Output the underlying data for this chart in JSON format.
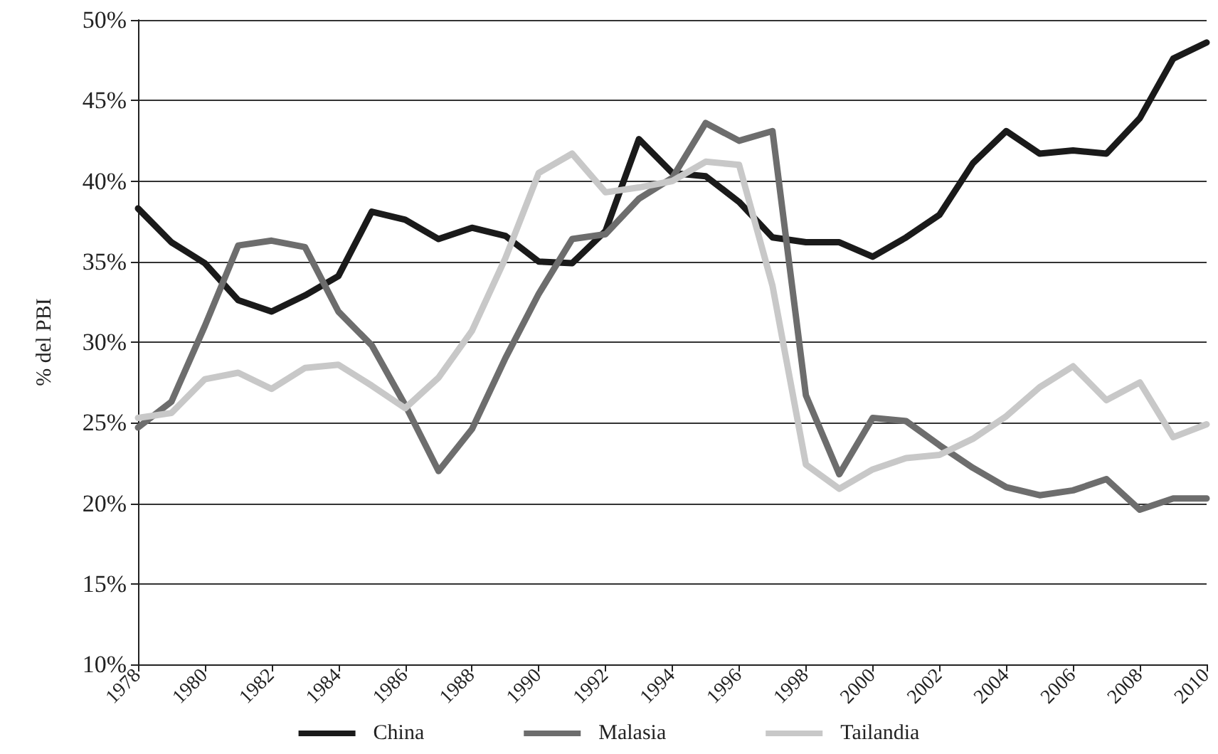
{
  "chart_data": {
    "type": "line",
    "ylabel": "% del PBI",
    "x": [
      1978,
      1979,
      1980,
      1981,
      1982,
      1983,
      1984,
      1985,
      1986,
      1987,
      1988,
      1989,
      1990,
      1991,
      1992,
      1993,
      1994,
      1995,
      1996,
      1997,
      1998,
      1999,
      2000,
      2001,
      2002,
      2003,
      2004,
      2005,
      2006,
      2007,
      2008,
      2009,
      2010
    ],
    "series": [
      {
        "name": "China",
        "color": "#1a1a1a",
        "values": [
          38.3,
          36.2,
          34.9,
          32.6,
          31.9,
          32.9,
          34.1,
          38.1,
          37.6,
          36.4,
          37.1,
          36.6,
          35.0,
          34.9,
          36.9,
          42.6,
          40.5,
          40.3,
          38.7,
          36.5,
          36.2,
          36.2,
          35.3,
          36.5,
          37.9,
          41.1,
          43.1,
          41.7,
          41.9,
          41.7,
          43.9,
          47.6,
          48.6
        ]
      },
      {
        "name": "Malasia",
        "color": "#6d6d6d",
        "values": [
          24.7,
          26.3,
          31.0,
          36.0,
          36.3,
          35.9,
          31.9,
          29.8,
          26.1,
          22.0,
          24.6,
          29.0,
          33.0,
          36.4,
          36.7,
          38.9,
          40.2,
          43.6,
          42.5,
          43.1,
          26.7,
          21.8,
          25.3,
          25.1,
          23.6,
          22.2,
          21.0,
          20.5,
          20.8,
          21.5,
          19.6,
          20.3,
          20.3
        ]
      },
      {
        "name": "Tailandia",
        "color": "#c8c8c8",
        "values": [
          25.3,
          25.6,
          27.7,
          28.1,
          27.1,
          28.4,
          28.6,
          27.3,
          25.9,
          27.8,
          30.7,
          35.2,
          40.5,
          41.7,
          39.3,
          39.6,
          40.0,
          41.2,
          41.0,
          33.5,
          22.4,
          20.9,
          22.1,
          22.8,
          23.0,
          24.0,
          25.4,
          27.2,
          28.5,
          26.4,
          27.5,
          24.1,
          24.9
        ]
      }
    ],
    "xlim": [
      1978,
      2010
    ],
    "xticks": [
      1978,
      1980,
      1982,
      1984,
      1986,
      1988,
      1990,
      1992,
      1994,
      1996,
      1998,
      2000,
      2002,
      2004,
      2006,
      2008,
      2010
    ],
    "ylim": [
      10,
      50
    ],
    "yticks": [
      {
        "value": 10,
        "label": "10%"
      },
      {
        "value": 15,
        "label": "15%"
      },
      {
        "value": 20,
        "label": "20%"
      },
      {
        "value": 25,
        "label": "25%"
      },
      {
        "value": 30,
        "label": "30%"
      },
      {
        "value": 35,
        "label": "35%"
      },
      {
        "value": 40,
        "label": "40%"
      },
      {
        "value": 45,
        "label": "45%"
      },
      {
        "value": 50,
        "label": "50%"
      }
    ],
    "grid": "y",
    "legend": "bottom",
    "marker": "none",
    "line_style": "solid"
  }
}
